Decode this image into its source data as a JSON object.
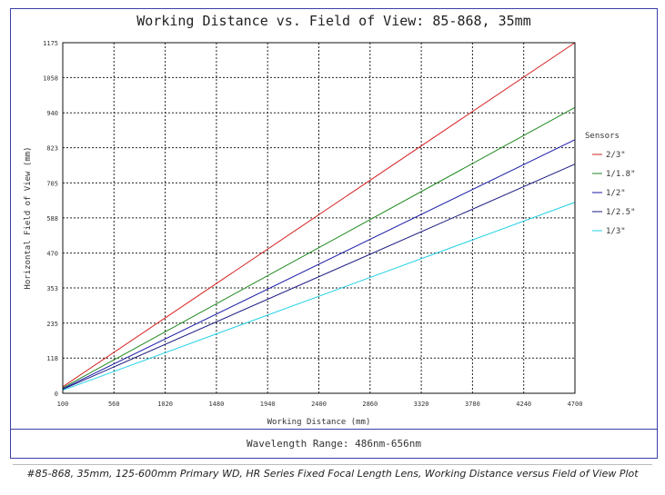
{
  "chart_data": {
    "type": "line",
    "title": "Working Distance vs. Field of View: 85-868, 35mm",
    "xlabel": "Working Distance (mm)",
    "ylabel": "Horizontal Field of View (mm)",
    "xlim": [
      100,
      4700
    ],
    "ylim": [
      0,
      1175
    ],
    "xticks": [
      100,
      560,
      1020,
      1480,
      1940,
      2400,
      2860,
      3320,
      3780,
      4240,
      4700
    ],
    "yticks": [
      0,
      118,
      235,
      353,
      470,
      588,
      705,
      823,
      940,
      1058,
      1175
    ],
    "grid": true,
    "legend_title": "Sensors",
    "legend_position": "right",
    "series": [
      {
        "name": "2/3\"",
        "color": "#d62020",
        "x": [
          100,
          4700
        ],
        "y": [
          22,
          1175
        ]
      },
      {
        "name": "1/1.8\"",
        "color": "#1f8a1f",
        "x": [
          100,
          4700
        ],
        "y": [
          18,
          958
        ]
      },
      {
        "name": "1/2\"",
        "color": "#1a1aa8",
        "x": [
          100,
          4700
        ],
        "y": [
          15,
          850
        ]
      },
      {
        "name": "1/2.5\"",
        "color": "#1a1a80",
        "x": [
          100,
          4700
        ],
        "y": [
          13,
          768
        ]
      },
      {
        "name": "1/3\"",
        "color": "#22d0e6",
        "x": [
          100,
          4700
        ],
        "y": [
          10,
          640
        ]
      }
    ]
  },
  "footer": {
    "wavelength": "Wavelength Range: 486nm-656nm"
  },
  "caption": "#85-868, 35mm, 125-600mm Primary WD, HR Series Fixed Focal Length Lens, Working Distance versus Field of View Plot"
}
